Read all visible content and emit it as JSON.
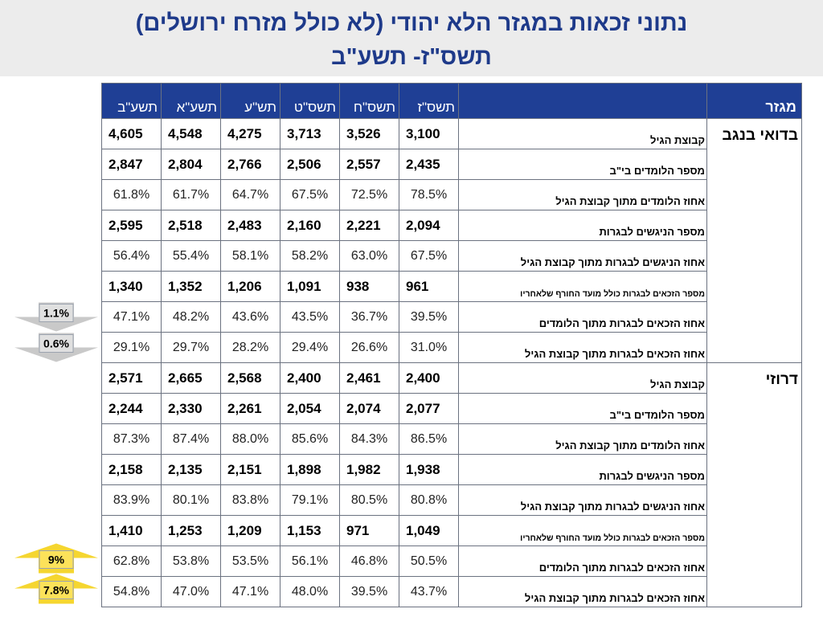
{
  "title": {
    "line1": "נתוני זכאות במגזר הלא יהודי (לא כולל מזרח ירושלים)",
    "line2": "תשס\"ז- תשע\"ב"
  },
  "colors": {
    "header_band": "#ececec",
    "title_text": "#1e3a8a",
    "table_header": "#1f3f95",
    "down_arrow": "#c9c9c9",
    "up_arrow": "#f5d630"
  },
  "chart_data": {
    "type": "table",
    "columns": [
      "תשע\"ב",
      "תשע\"א",
      "תש\"ע",
      "תשס\"ט",
      "תשס\"ח",
      "תשס\"ז"
    ],
    "sector_header": "מגזר",
    "sections": [
      {
        "sector": "בדואי בנגב",
        "rows": [
          {
            "label": "קבוצת הגיל",
            "kind": "count",
            "values": [
              "4,605",
              "4,548",
              "4,275",
              "3,713",
              "3,526",
              "3,100"
            ]
          },
          {
            "label": "מספר הלומדים בי\"ב",
            "kind": "count",
            "values": [
              "2,847",
              "2,804",
              "2,766",
              "2,506",
              "2,557",
              "2,435"
            ]
          },
          {
            "label": "אחוז הלומדים מתוך קבוצת הגיל",
            "kind": "pct",
            "values": [
              "61.8%",
              "61.7%",
              "64.7%",
              "67.5%",
              "72.5%",
              "78.5%"
            ]
          },
          {
            "label": "מספר הניגשים לבגרות",
            "kind": "count",
            "values": [
              "2,595",
              "2,518",
              "2,483",
              "2,160",
              "2,221",
              "2,094"
            ]
          },
          {
            "label": "אחוז הניגשים לבגרות מתוך קבוצת הגיל",
            "kind": "pct",
            "values": [
              "56.4%",
              "55.4%",
              "58.1%",
              "58.2%",
              "63.0%",
              "67.5%"
            ]
          },
          {
            "label": "מספר הזכאים לבגרות כולל מועד החורף שלאחריו",
            "kind": "count",
            "small": true,
            "values": [
              "1,340",
              "1,352",
              "1,206",
              "1,091",
              "938",
              "961"
            ]
          },
          {
            "label": "אחוז הזכאים לבגרות מתוך הלומדים",
            "kind": "pct",
            "values": [
              "47.1%",
              "48.2%",
              "43.6%",
              "43.5%",
              "36.7%",
              "39.5%"
            ]
          },
          {
            "label": "אחוז הזכאים לבגרות מתוך קבוצת הגיל",
            "kind": "pct",
            "values": [
              "29.1%",
              "29.7%",
              "28.2%",
              "29.4%",
              "26.6%",
              "31.0%"
            ]
          }
        ]
      },
      {
        "sector": "דרוזי",
        "rows": [
          {
            "label": "קבוצת הגיל",
            "kind": "count",
            "values": [
              "2,571",
              "2,665",
              "2,568",
              "2,400",
              "2,461",
              "2,400"
            ]
          },
          {
            "label": "מספר הלומדים בי\"ב",
            "kind": "count",
            "values": [
              "2,244",
              "2,330",
              "2,261",
              "2,054",
              "2,074",
              "2,077"
            ]
          },
          {
            "label": "אחוז הלומדים מתוך קבוצת הגיל",
            "kind": "pct",
            "values": [
              "87.3%",
              "87.4%",
              "88.0%",
              "85.6%",
              "84.3%",
              "86.5%"
            ]
          },
          {
            "label": "מספר הניגשים לבגרות",
            "kind": "count",
            "values": [
              "2,158",
              "2,135",
              "2,151",
              "1,898",
              "1,982",
              "1,938"
            ]
          },
          {
            "label": "אחוז הניגשים לבגרות מתוך קבוצת הגיל",
            "kind": "pct",
            "values": [
              "83.9%",
              "80.1%",
              "83.8%",
              "79.1%",
              "80.5%",
              "80.8%"
            ]
          },
          {
            "label": "מספר הזכאים לבגרות כולל מועד החורף שלאחריו",
            "kind": "count",
            "small": true,
            "values": [
              "1,410",
              "1,253",
              "1,209",
              "1,153",
              "971",
              "1,049"
            ]
          },
          {
            "label": "אחוז הזכאים לבגרות מתוך הלומדים",
            "kind": "pct",
            "values": [
              "62.8%",
              "53.8%",
              "53.5%",
              "56.1%",
              "46.8%",
              "50.5%"
            ]
          },
          {
            "label": "אחוז הזכאים לבגרות מתוך קבוצת הגיל",
            "kind": "pct",
            "values": [
              "54.8%",
              "47.0%",
              "47.1%",
              "48.0%",
              "39.5%",
              "43.7%"
            ]
          }
        ]
      }
    ],
    "annotations": [
      {
        "label": "1.1%",
        "direction": "down",
        "sector": "בדואי בנגב",
        "row": "אחוז הזכאים לבגרות מתוך הלומדים"
      },
      {
        "label": "0.6%",
        "direction": "down",
        "sector": "בדואי בנגב",
        "row": "אחוז הזכאים לבגרות מתוך קבוצת הגיל"
      },
      {
        "label": "9%",
        "direction": "up",
        "sector": "דרוזי",
        "row": "אחוז הזכאים לבגרות מתוך הלומדים"
      },
      {
        "label": "7.8%",
        "direction": "up",
        "sector": "דרוזי",
        "row": "אחוז הזכאים לבגרות מתוך קבוצת הגיל"
      }
    ]
  }
}
